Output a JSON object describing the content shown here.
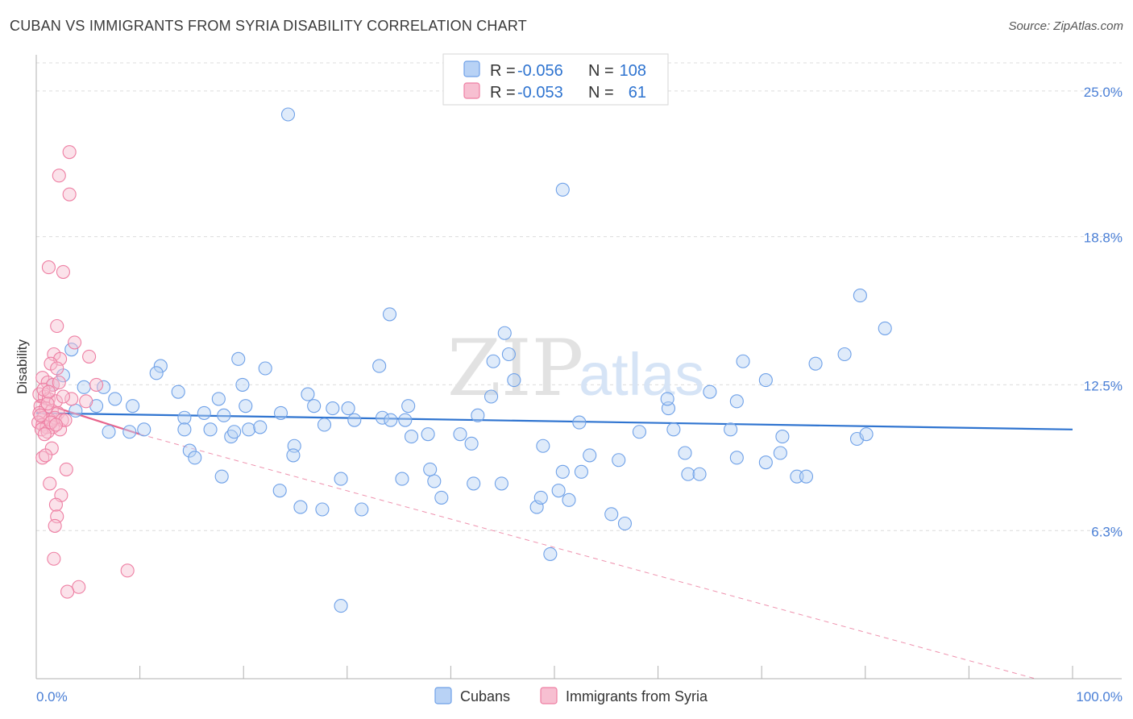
{
  "title": "CUBAN VS IMMIGRANTS FROM SYRIA DISABILITY CORRELATION CHART",
  "source": "Source: ZipAtlas.com",
  "watermark": {
    "zip": "ZIP",
    "atlas": "atlas"
  },
  "colors": {
    "blue": "#6fa1e8",
    "blue_fill": "#b8d2f5",
    "blue_line": "#2f74d0",
    "pink": "#ee7fa3",
    "pink_fill": "#f7bfd1",
    "pink_line": "#e8648c",
    "grid": "#dcdcdc",
    "axis_label": "#4a7fd6"
  },
  "stats_legend": {
    "r_label": "R =",
    "n_label": "N =",
    "rows": [
      {
        "r": "-0.056",
        "n": "108"
      },
      {
        "r": "-0.053",
        "n": "61"
      }
    ]
  },
  "chart_data": {
    "type": "scatter",
    "title": "CUBAN VS IMMIGRANTS FROM SYRIA DISABILITY CORRELATION CHART",
    "xlabel": "",
    "ylabel": "Disability",
    "xlim": [
      0,
      100
    ],
    "ylim": [
      0,
      26.4
    ],
    "x_tick_labels": [
      "0.0%",
      "100.0%"
    ],
    "y_ticks": [
      6.3,
      12.5,
      18.8,
      25.0
    ],
    "y_tick_labels": [
      "6.3%",
      "12.5%",
      "18.8%",
      "25.0%"
    ],
    "grid": true,
    "legend_position": "bottom",
    "series": [
      {
        "name": "Cubans",
        "trend": {
          "x": [
            0,
            100
          ],
          "y": [
            11.3,
            10.6
          ],
          "style": "solid"
        },
        "points": [
          [
            24.3,
            24.0
          ],
          [
            50.8,
            20.8
          ],
          [
            79.5,
            16.3
          ],
          [
            81.9,
            14.9
          ],
          [
            34.1,
            15.5
          ],
          [
            45.2,
            14.7
          ],
          [
            45.6,
            13.8
          ],
          [
            78.0,
            13.8
          ],
          [
            3.4,
            14.0
          ],
          [
            12.0,
            13.3
          ],
          [
            19.5,
            13.6
          ],
          [
            22.1,
            13.2
          ],
          [
            33.1,
            13.3
          ],
          [
            44.1,
            13.5
          ],
          [
            68.2,
            13.5
          ],
          [
            75.2,
            13.4
          ],
          [
            11.6,
            13.0
          ],
          [
            1.6,
            12.5
          ],
          [
            4.6,
            12.4
          ],
          [
            6.5,
            12.4
          ],
          [
            19.9,
            12.5
          ],
          [
            2.6,
            12.9
          ],
          [
            46.1,
            12.7
          ],
          [
            70.4,
            12.7
          ],
          [
            13.7,
            12.2
          ],
          [
            26.2,
            12.1
          ],
          [
            43.9,
            12.0
          ],
          [
            65.0,
            12.2
          ],
          [
            7.6,
            11.9
          ],
          [
            9.3,
            11.6
          ],
          [
            17.6,
            11.9
          ],
          [
            20.2,
            11.6
          ],
          [
            28.6,
            11.5
          ],
          [
            35.9,
            11.6
          ],
          [
            61.0,
            11.5
          ],
          [
            67.6,
            11.8
          ],
          [
            3.8,
            11.4
          ],
          [
            5.8,
            11.6
          ],
          [
            14.3,
            11.1
          ],
          [
            16.2,
            11.3
          ],
          [
            18.1,
            11.2
          ],
          [
            23.6,
            11.3
          ],
          [
            26.8,
            11.6
          ],
          [
            30.1,
            11.5
          ],
          [
            30.7,
            11.0
          ],
          [
            33.4,
            11.1
          ],
          [
            35.6,
            11.0
          ],
          [
            42.6,
            11.2
          ],
          [
            7.0,
            10.5
          ],
          [
            9.0,
            10.5
          ],
          [
            10.4,
            10.6
          ],
          [
            14.3,
            10.6
          ],
          [
            16.8,
            10.6
          ],
          [
            20.5,
            10.6
          ],
          [
            21.6,
            10.7
          ],
          [
            27.8,
            10.8
          ],
          [
            34.2,
            11.0
          ],
          [
            36.2,
            10.3
          ],
          [
            37.8,
            10.4
          ],
          [
            52.4,
            10.9
          ],
          [
            58.2,
            10.5
          ],
          [
            61.5,
            10.6
          ],
          [
            67.0,
            10.6
          ],
          [
            72.0,
            10.3
          ],
          [
            79.2,
            10.2
          ],
          [
            80.1,
            10.4
          ],
          [
            18.8,
            10.3
          ],
          [
            19.1,
            10.5
          ],
          [
            24.9,
            9.9
          ],
          [
            24.8,
            9.5
          ],
          [
            14.8,
            9.7
          ],
          [
            15.3,
            9.4
          ],
          [
            40.9,
            10.4
          ],
          [
            42.0,
            10.0
          ],
          [
            48.9,
            9.9
          ],
          [
            53.4,
            9.5
          ],
          [
            56.2,
            9.3
          ],
          [
            62.6,
            9.6
          ],
          [
            67.6,
            9.4
          ],
          [
            70.4,
            9.2
          ],
          [
            71.8,
            9.6
          ],
          [
            17.9,
            8.6
          ],
          [
            23.5,
            8.0
          ],
          [
            27.6,
            7.2
          ],
          [
            29.4,
            8.5
          ],
          [
            35.3,
            8.5
          ],
          [
            38.4,
            8.4
          ],
          [
            39.1,
            7.7
          ],
          [
            42.2,
            8.3
          ],
          [
            44.9,
            8.3
          ],
          [
            48.3,
            7.3
          ],
          [
            48.7,
            7.7
          ],
          [
            50.8,
            8.8
          ],
          [
            52.6,
            8.8
          ],
          [
            55.5,
            7.0
          ],
          [
            56.8,
            6.6
          ],
          [
            62.9,
            8.7
          ],
          [
            73.4,
            8.6
          ],
          [
            74.3,
            8.6
          ],
          [
            50.4,
            8.0
          ],
          [
            51.4,
            7.6
          ],
          [
            25.5,
            7.3
          ],
          [
            31.4,
            7.2
          ],
          [
            29.4,
            3.1
          ],
          [
            49.6,
            5.3
          ],
          [
            38.0,
            8.9
          ],
          [
            64.0,
            8.7
          ],
          [
            60.9,
            11.9
          ]
        ]
      },
      {
        "name": "Immigrants from Syria",
        "trend": {
          "x": [
            0,
            10
          ],
          "y": [
            11.8,
            10.4
          ],
          "style": "solid",
          "extended_x": [
            10,
            96.4
          ],
          "extended_y": [
            10.4,
            0.0
          ],
          "extended_style": "dashed"
        },
        "points": [
          [
            3.2,
            22.4
          ],
          [
            2.2,
            21.4
          ],
          [
            3.2,
            20.6
          ],
          [
            1.2,
            17.5
          ],
          [
            2.6,
            17.3
          ],
          [
            2.0,
            15.0
          ],
          [
            3.7,
            14.3
          ],
          [
            1.7,
            13.8
          ],
          [
            2.3,
            13.6
          ],
          [
            5.1,
            13.7
          ],
          [
            1.4,
            13.4
          ],
          [
            2.0,
            13.2
          ],
          [
            0.6,
            12.8
          ],
          [
            1.1,
            12.6
          ],
          [
            1.6,
            12.5
          ],
          [
            2.2,
            12.6
          ],
          [
            5.8,
            12.5
          ],
          [
            0.3,
            12.1
          ],
          [
            0.8,
            12.0
          ],
          [
            1.2,
            11.9
          ],
          [
            1.9,
            11.8
          ],
          [
            0.4,
            11.6
          ],
          [
            0.9,
            11.5
          ],
          [
            1.5,
            11.4
          ],
          [
            2.1,
            11.3
          ],
          [
            0.3,
            11.3
          ],
          [
            0.7,
            11.1
          ],
          [
            1.3,
            11.0
          ],
          [
            1.8,
            11.1
          ],
          [
            2.5,
            11.0
          ],
          [
            0.2,
            10.9
          ],
          [
            0.6,
            10.8
          ],
          [
            1.0,
            10.7
          ],
          [
            1.6,
            10.7
          ],
          [
            2.3,
            10.6
          ],
          [
            0.5,
            10.6
          ],
          [
            1.1,
            10.5
          ],
          [
            0.8,
            10.4
          ],
          [
            1.4,
            10.9
          ],
          [
            2.8,
            11.0
          ],
          [
            3.4,
            11.9
          ],
          [
            0.4,
            11.2
          ],
          [
            1.9,
            10.8
          ],
          [
            0.7,
            12.3
          ],
          [
            1.2,
            12.2
          ],
          [
            1.5,
            9.8
          ],
          [
            0.6,
            9.4
          ],
          [
            0.9,
            9.5
          ],
          [
            2.9,
            8.9
          ],
          [
            1.3,
            8.3
          ],
          [
            2.4,
            7.8
          ],
          [
            1.9,
            7.4
          ],
          [
            2.0,
            6.9
          ],
          [
            1.8,
            6.5
          ],
          [
            1.7,
            5.1
          ],
          [
            8.8,
            4.6
          ],
          [
            4.1,
            3.9
          ],
          [
            3.0,
            3.7
          ],
          [
            1.1,
            11.7
          ],
          [
            4.8,
            11.8
          ],
          [
            2.6,
            12.0
          ]
        ]
      }
    ]
  },
  "bottom_legend": [
    "Cubans",
    "Immigrants from Syria"
  ]
}
